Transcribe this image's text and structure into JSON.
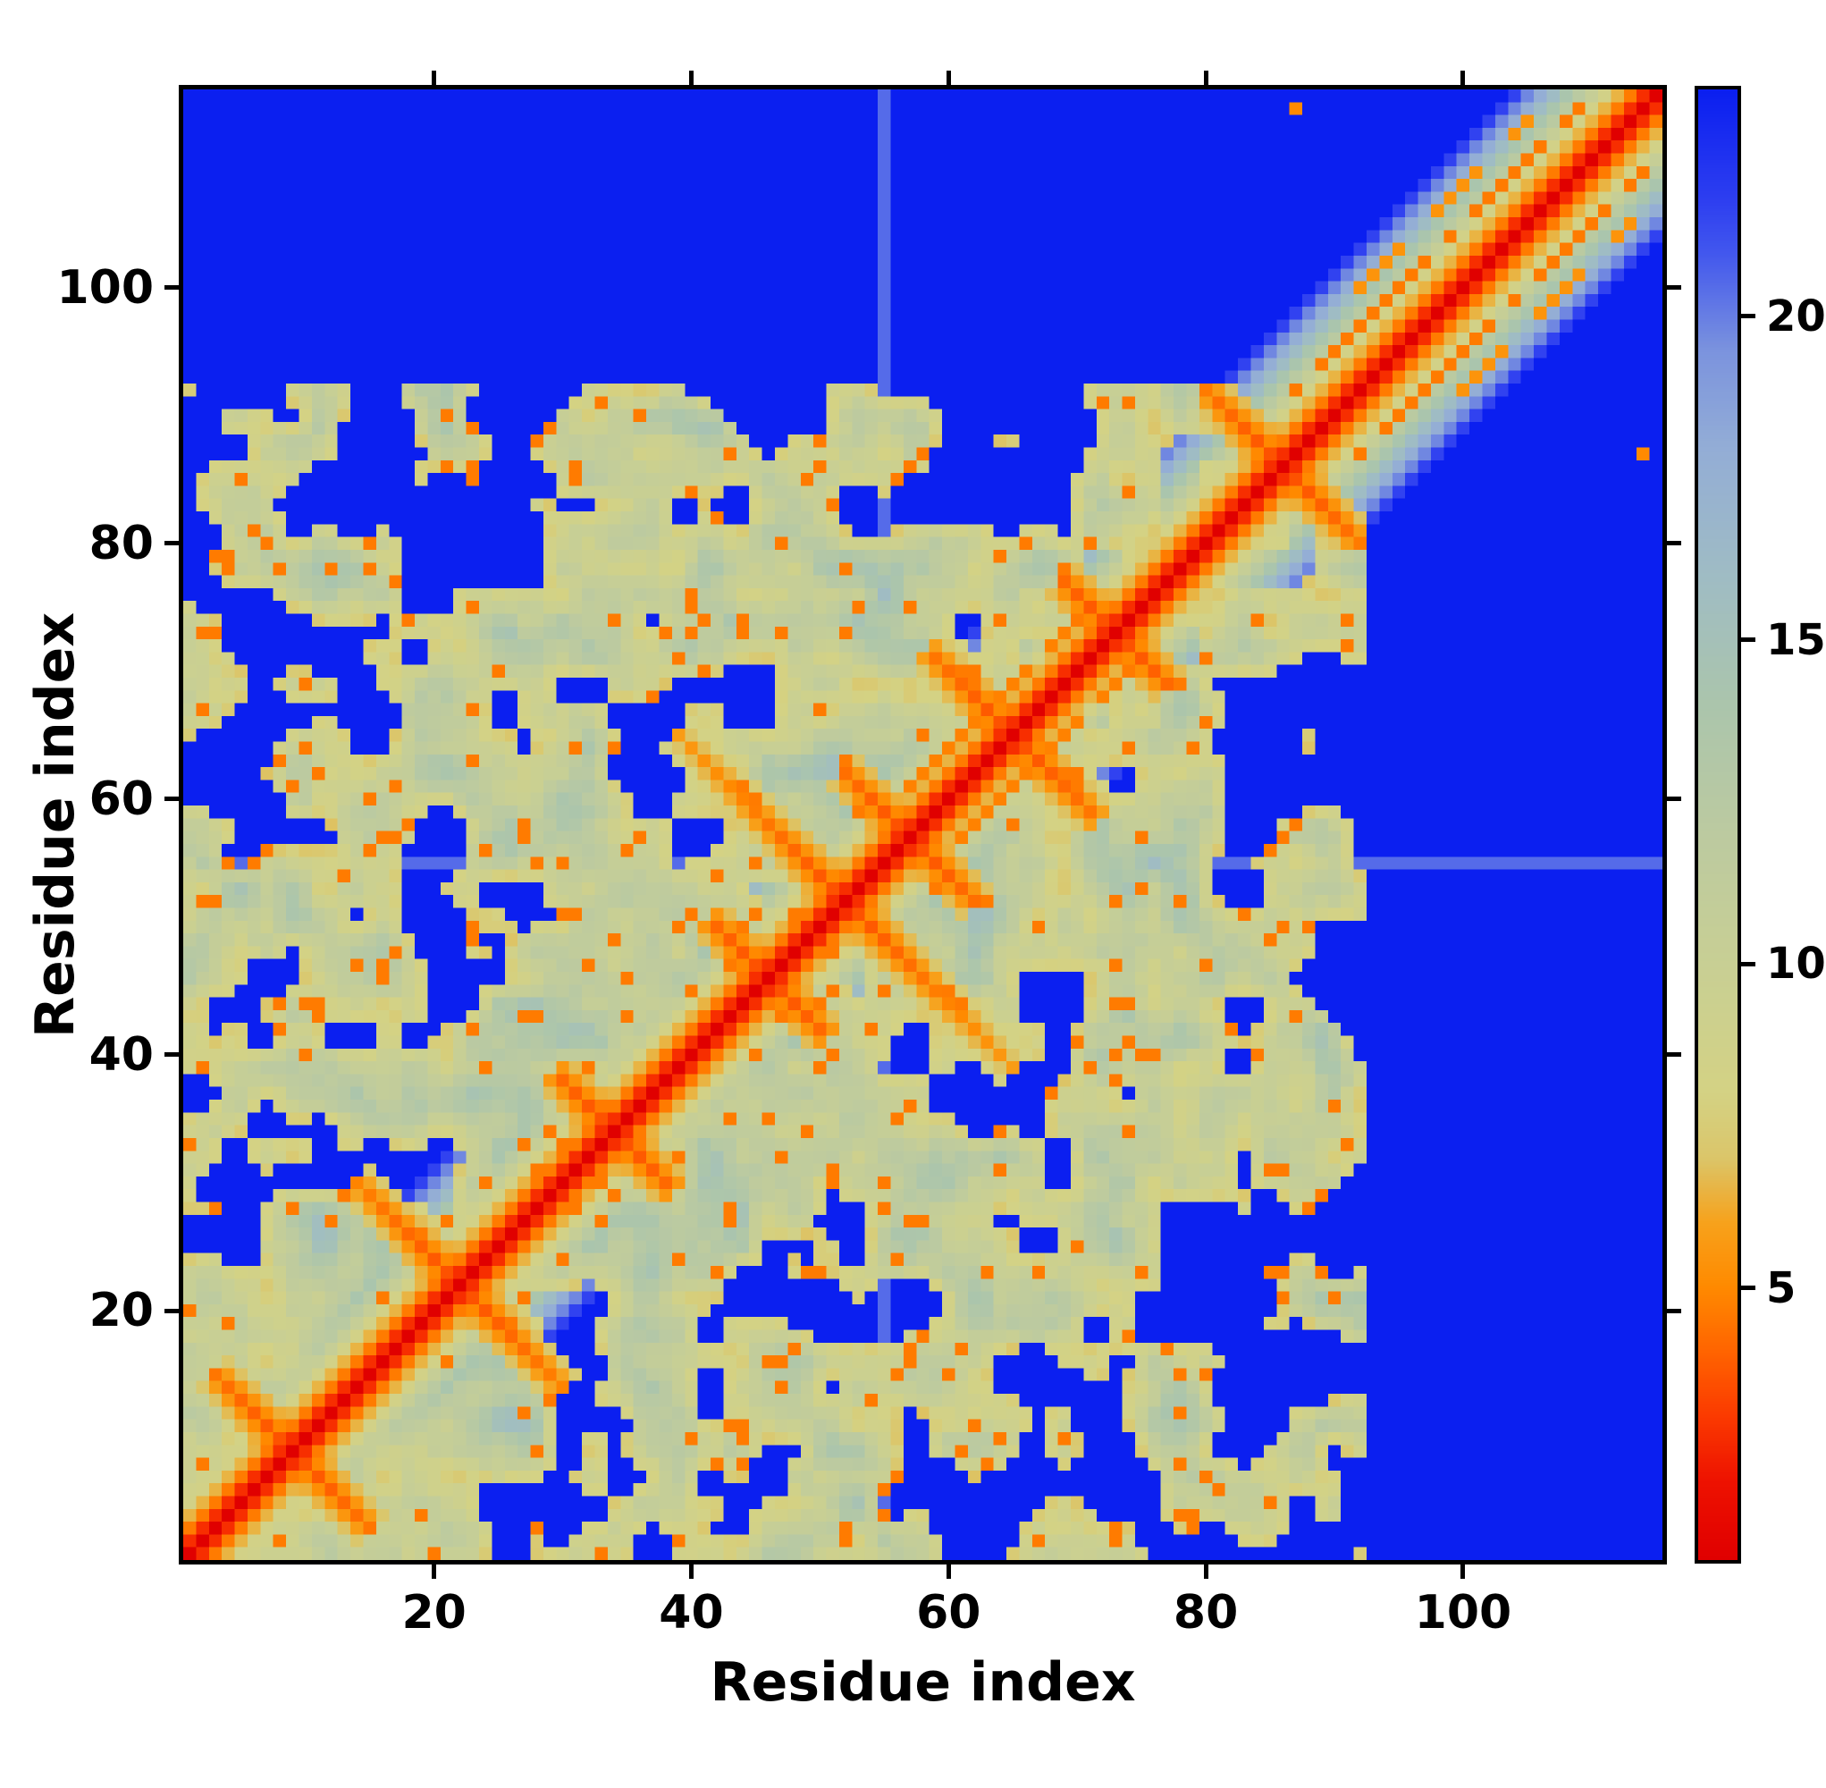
{
  "chart_data": {
    "type": "heatmap",
    "title": "",
    "xlabel": "Residue index",
    "ylabel": "Residue index",
    "xlim": [
      0.5,
      115.5
    ],
    "ylim": [
      0.5,
      115.5
    ],
    "xticks": [
      20,
      40,
      60,
      80,
      100
    ],
    "yticks": [
      20,
      40,
      60,
      80,
      100
    ],
    "n_residues": 115,
    "description": "Symmetric residue-residue distance map: red diagonal (zero distance), orange near-diagonal contacts and anti-diagonal hairpin streaks, pale green/grey mid-range contact mosaic with deep blue holes; residues above ~92 only contact the chain diagonal (blue upper-left and lower-right corners); faint pale line at residue 55; isolated orange contact near (87,114).",
    "colorbar": {
      "ticks": [
        5,
        10,
        15,
        20
      ],
      "vmin": 0.8,
      "vmax": 23.5
    },
    "colormap": [
      {
        "v": 0.8,
        "c": "#e00000"
      },
      {
        "v": 2.0,
        "c": "#ee1200"
      },
      {
        "v": 3.0,
        "c": "#fb3a00"
      },
      {
        "v": 4.0,
        "c": "#ff6400"
      },
      {
        "v": 5.0,
        "c": "#ff8a00"
      },
      {
        "v": 6.0,
        "c": "#f7a21c"
      },
      {
        "v": 7.0,
        "c": "#dbc66a"
      },
      {
        "v": 8.0,
        "c": "#d4d284"
      },
      {
        "v": 10.0,
        "c": "#c8cf94"
      },
      {
        "v": 12.0,
        "c": "#bccaa0"
      },
      {
        "v": 14.0,
        "c": "#abc5ac"
      },
      {
        "v": 16.0,
        "c": "#9fbcc4"
      },
      {
        "v": 18.0,
        "c": "#93add6"
      },
      {
        "v": 19.5,
        "c": "#7b93de"
      },
      {
        "v": 21.0,
        "c": "#4257ee"
      },
      {
        "v": 21.8,
        "c": "#2e3ff0"
      },
      {
        "v": 23.5,
        "c": "#0b1ff0"
      }
    ],
    "matrix_spec": {
      "seed": 1337,
      "chain_base": 0.8,
      "chain_slope": 1.9,
      "core_limit": 92,
      "edge_taper_start": 80,
      "edge_taper_rate": 0.012,
      "near_diag_bonus_span": 24,
      "near_diag_bonus_rate": 0.005,
      "hole_threshold": 0.4,
      "contact_base": 7.5,
      "contact_range": 9.0,
      "dither": 1.4,
      "noise_octaves": [
        {
          "step": 5.2,
          "weight": 0.62
        },
        {
          "step": 2.3,
          "weight": 0.38
        }
      ],
      "speckle_rate": 0.055,
      "speckle_value": 4.6,
      "hairpins": [
        {
          "c": 9,
          "r": 12
        },
        {
          "c": 22,
          "r": 16
        },
        {
          "c": 34,
          "r": 9
        },
        {
          "c": 46,
          "r": 9
        },
        {
          "c": 52,
          "r": 26
        },
        {
          "c": 57,
          "r": 10
        },
        {
          "c": 65,
          "r": 13
        },
        {
          "c": 73,
          "r": 8
        },
        {
          "c": 86,
          "r": 11
        }
      ],
      "parallels": [
        {
          "s": 89,
          "e": 112,
          "o": 5,
          "v": 4.6
        },
        {
          "s": 96,
          "e": 109,
          "o": 8,
          "v": 5.4
        },
        {
          "s": 58,
          "e": 71,
          "o": 4,
          "v": 4.8
        }
      ],
      "extra_contacts": [
        [
          87,
          114
        ]
      ],
      "extra_contact_value": 5.0,
      "gap_residue": 55,
      "gap_value": 20.5
    }
  }
}
